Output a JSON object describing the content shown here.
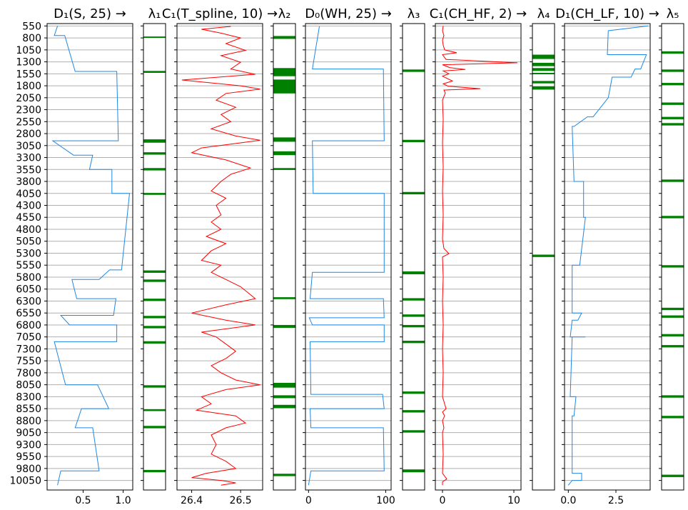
{
  "chart_data": {
    "type": "line",
    "orientation": "vertical-depth-track",
    "shared_y": {
      "ticks": [
        550,
        800,
        1050,
        1300,
        1550,
        1800,
        2050,
        2300,
        2550,
        2800,
        3050,
        3300,
        3550,
        3800,
        4050,
        4300,
        4550,
        4800,
        5050,
        5300,
        5550,
        5800,
        6050,
        6300,
        6550,
        6800,
        7050,
        7300,
        7550,
        7800,
        8050,
        8300,
        8550,
        8800,
        9050,
        9300,
        9550,
        9800,
        10050
      ],
      "range": [
        10250,
        500
      ],
      "grid": true
    },
    "colors": {
      "blue": "#1e88e5",
      "red": "#ff0000",
      "green": "#008000",
      "grid": "#b0b0b0"
    },
    "panels": [
      {
        "title": "D₁(S, 25) →",
        "kind": "line",
        "color": "#1e88e5",
        "xlim": [
          0.05,
          1.12
        ],
        "xticks": [
          0.5,
          1.0
        ],
        "xtick_labels": [
          "0.5",
          "1.0"
        ],
        "points": [
          [
            0.18,
            550
          ],
          [
            0.14,
            750
          ],
          [
            0.27,
            750
          ],
          [
            0.4,
            1500
          ],
          [
            0.92,
            1500
          ],
          [
            0.94,
            2950
          ],
          [
            0.12,
            2950
          ],
          [
            0.38,
            3250
          ],
          [
            0.62,
            3250
          ],
          [
            0.58,
            3550
          ],
          [
            0.86,
            3550
          ],
          [
            0.86,
            4050
          ],
          [
            1.08,
            4050
          ],
          [
            0.98,
            5650
          ],
          [
            0.83,
            5650
          ],
          [
            0.7,
            5850
          ],
          [
            0.36,
            5850
          ],
          [
            0.42,
            6250
          ],
          [
            0.91,
            6250
          ],
          [
            0.88,
            6600
          ],
          [
            0.22,
            6600
          ],
          [
            0.33,
            6800
          ],
          [
            0.92,
            6800
          ],
          [
            0.92,
            7150
          ],
          [
            0.14,
            7150
          ],
          [
            0.28,
            8050
          ],
          [
            0.68,
            8050
          ],
          [
            0.82,
            8550
          ],
          [
            0.48,
            8550
          ],
          [
            0.4,
            8950
          ],
          [
            0.62,
            8950
          ],
          [
            0.7,
            9850
          ],
          [
            0.22,
            9850
          ],
          [
            0.18,
            10150
          ]
        ]
      },
      {
        "title": "λ₁",
        "kind": "bands",
        "color": "#008000",
        "bands": [
          [
            770,
            790
          ],
          [
            1490,
            1530
          ],
          [
            2920,
            2990
          ],
          [
            3190,
            3240
          ],
          [
            3520,
            3570
          ],
          [
            4040,
            4080
          ],
          [
            5660,
            5710
          ],
          [
            5850,
            5900
          ],
          [
            6250,
            6300
          ],
          [
            6610,
            6660
          ],
          [
            6820,
            6870
          ],
          [
            7140,
            7190
          ],
          [
            8060,
            8110
          ],
          [
            8560,
            8600
          ],
          [
            8910,
            8960
          ],
          [
            9830,
            9880
          ]
        ]
      },
      {
        "title": "C₁(T_spline, 10) →",
        "kind": "line",
        "color": "#ff0000",
        "xlim": [
          26.37,
          26.545
        ],
        "xticks": [
          26.4,
          26.5
        ],
        "xtick_labels": [
          "26.4",
          "26.5"
        ],
        "points": [
          [
            26.48,
            560
          ],
          [
            26.42,
            620
          ],
          [
            26.46,
            700
          ],
          [
            26.5,
            800
          ],
          [
            26.47,
            920
          ],
          [
            26.51,
            1060
          ],
          [
            26.46,
            1170
          ],
          [
            26.5,
            1310
          ],
          [
            26.48,
            1450
          ],
          [
            26.53,
            1560
          ],
          [
            26.38,
            1680
          ],
          [
            26.5,
            1800
          ],
          [
            26.54,
            1870
          ],
          [
            26.47,
            1960
          ],
          [
            26.45,
            2100
          ],
          [
            26.49,
            2250
          ],
          [
            26.46,
            2400
          ],
          [
            26.48,
            2550
          ],
          [
            26.44,
            2700
          ],
          [
            26.49,
            2850
          ],
          [
            26.54,
            2940
          ],
          [
            26.42,
            3100
          ],
          [
            26.4,
            3200
          ],
          [
            26.47,
            3350
          ],
          [
            26.52,
            3520
          ],
          [
            26.48,
            3650
          ],
          [
            26.46,
            3800
          ],
          [
            26.44,
            4000
          ],
          [
            26.47,
            4150
          ],
          [
            26.45,
            4300
          ],
          [
            26.46,
            4500
          ],
          [
            26.44,
            4650
          ],
          [
            26.46,
            4800
          ],
          [
            26.43,
            4950
          ],
          [
            26.47,
            5100
          ],
          [
            26.44,
            5250
          ],
          [
            26.42,
            5450
          ],
          [
            26.46,
            5550
          ],
          [
            26.44,
            5700
          ],
          [
            26.47,
            5850
          ],
          [
            26.5,
            6000
          ],
          [
            26.53,
            6250
          ],
          [
            26.47,
            6380
          ],
          [
            26.4,
            6550
          ],
          [
            26.47,
            6700
          ],
          [
            26.53,
            6800
          ],
          [
            26.42,
            6950
          ],
          [
            26.45,
            7050
          ],
          [
            26.47,
            7200
          ],
          [
            26.49,
            7350
          ],
          [
            26.47,
            7500
          ],
          [
            26.44,
            7650
          ],
          [
            26.46,
            7800
          ],
          [
            26.49,
            7950
          ],
          [
            26.54,
            8050
          ],
          [
            26.47,
            8150
          ],
          [
            26.42,
            8300
          ],
          [
            26.44,
            8450
          ],
          [
            26.41,
            8580
          ],
          [
            26.49,
            8700
          ],
          [
            26.51,
            8850
          ],
          [
            26.47,
            8950
          ],
          [
            26.44,
            9100
          ],
          [
            26.45,
            9300
          ],
          [
            26.44,
            9500
          ],
          [
            26.47,
            9650
          ],
          [
            26.49,
            9800
          ],
          [
            26.43,
            9900
          ],
          [
            26.4,
            9990
          ],
          [
            26.46,
            10050
          ],
          [
            26.49,
            10100
          ],
          [
            26.46,
            10150
          ]
        ]
      },
      {
        "title": "λ₂",
        "kind": "bands",
        "color": "#008000",
        "bands": [
          [
            760,
            820
          ],
          [
            1430,
            1600
          ],
          [
            1670,
            1960
          ],
          [
            2880,
            2970
          ],
          [
            3170,
            3250
          ],
          [
            3520,
            3560
          ],
          [
            6220,
            6260
          ],
          [
            6800,
            6860
          ],
          [
            8010,
            8110
          ],
          [
            8270,
            8330
          ],
          [
            8470,
            8540
          ],
          [
            9910,
            9960
          ]
        ]
      },
      {
        "title": "D₀(WH, 25) →",
        "kind": "line",
        "color": "#1e88e5",
        "xlim": [
          -4,
          107
        ],
        "xticks": [
          0,
          100
        ],
        "xtick_labels": [
          "0",
          "100"
        ],
        "points": [
          [
            14,
            560
          ],
          [
            5,
            1450
          ],
          [
            97,
            1450
          ],
          [
            98,
            2950
          ],
          [
            5,
            2950
          ],
          [
            6,
            4050
          ],
          [
            98,
            4050
          ],
          [
            98,
            5700
          ],
          [
            5,
            5700
          ],
          [
            2,
            6250
          ],
          [
            97,
            6250
          ],
          [
            98,
            6650
          ],
          [
            1,
            6650
          ],
          [
            5,
            6800
          ],
          [
            98,
            6800
          ],
          [
            98,
            7150
          ],
          [
            2,
            7150
          ],
          [
            3,
            8250
          ],
          [
            96,
            8250
          ],
          [
            98,
            8550
          ],
          [
            2,
            8550
          ],
          [
            3,
            8950
          ],
          [
            97,
            8950
          ],
          [
            98,
            9850
          ],
          [
            3,
            9850
          ],
          [
            0,
            10150
          ]
        ]
      },
      {
        "title": "λ₃",
        "kind": "bands",
        "color": "#008000",
        "bands": [
          [
            1460,
            1510
          ],
          [
            2930,
            2980
          ],
          [
            4020,
            4070
          ],
          [
            5680,
            5740
          ],
          [
            6240,
            6290
          ],
          [
            6580,
            6630
          ],
          [
            6800,
            6850
          ],
          [
            7130,
            7180
          ],
          [
            8190,
            8240
          ],
          [
            8580,
            8630
          ],
          [
            9000,
            9050
          ],
          [
            9820,
            9880
          ]
        ]
      },
      {
        "title": "C₁(CH_HF, 2) →",
        "kind": "line",
        "color": "#ff0000",
        "xlim": [
          -1,
          11
        ],
        "xticks": [
          0,
          10
        ],
        "xtick_labels": [
          "0",
          "10"
        ],
        "points": [
          [
            0.1,
            550
          ],
          [
            0.0,
            650
          ],
          [
            0.2,
            750
          ],
          [
            0.0,
            850
          ],
          [
            0.1,
            950
          ],
          [
            0.3,
            1050
          ],
          [
            2.0,
            1110
          ],
          [
            0.0,
            1150
          ],
          [
            0.5,
            1250
          ],
          [
            10.5,
            1320
          ],
          [
            0.0,
            1360
          ],
          [
            1.0,
            1420
          ],
          [
            3.2,
            1460
          ],
          [
            0.1,
            1490
          ],
          [
            0.9,
            1550
          ],
          [
            0.0,
            1600
          ],
          [
            1.4,
            1700
          ],
          [
            0.1,
            1760
          ],
          [
            0.8,
            1810
          ],
          [
            5.3,
            1860
          ],
          [
            0.2,
            1890
          ],
          [
            0.4,
            1950
          ],
          [
            0.0,
            2100
          ],
          [
            0.1,
            2500
          ],
          [
            0.0,
            3000
          ],
          [
            0.1,
            3500
          ],
          [
            0.0,
            4000
          ],
          [
            0.1,
            4500
          ],
          [
            0.0,
            5000
          ],
          [
            0.2,
            5200
          ],
          [
            0.9,
            5310
          ],
          [
            0.0,
            5380
          ],
          [
            0.1,
            5800
          ],
          [
            0.0,
            6300
          ],
          [
            0.1,
            6800
          ],
          [
            0.0,
            7300
          ],
          [
            0.1,
            7800
          ],
          [
            0.0,
            8300
          ],
          [
            0.5,
            8550
          ],
          [
            0.0,
            8620
          ],
          [
            0.3,
            8700
          ],
          [
            0.0,
            8800
          ],
          [
            0.2,
            8950
          ],
          [
            0.0,
            9050
          ],
          [
            0.1,
            9500
          ],
          [
            0.0,
            9900
          ],
          [
            0.6,
            10020
          ],
          [
            0.0,
            10080
          ],
          [
            0.0,
            10150
          ]
        ]
      },
      {
        "title": "λ₄",
        "kind": "bands",
        "color": "#008000",
        "bands": [
          [
            1150,
            1240
          ],
          [
            1320,
            1390
          ],
          [
            1430,
            1490
          ],
          [
            1530,
            1560
          ],
          [
            1700,
            1750
          ],
          [
            1810,
            1880
          ],
          [
            5330,
            5380
          ]
        ]
      },
      {
        "title": "D₁(CH_LF, 10) →",
        "kind": "line",
        "color": "#1e88e5",
        "xlim": [
          -0.2,
          4.3
        ],
        "xticks": [
          0.0,
          2.5
        ],
        "xtick_labels": [
          "0.0",
          "2.5"
        ],
        "points": [
          [
            4.2,
            550
          ],
          [
            2.1,
            650
          ],
          [
            2.05,
            1150
          ],
          [
            4.1,
            1150
          ],
          [
            3.8,
            1450
          ],
          [
            3.5,
            1450
          ],
          [
            3.3,
            1620
          ],
          [
            2.3,
            1620
          ],
          [
            2.1,
            2050
          ],
          [
            1.7,
            2250
          ],
          [
            1.3,
            2450
          ],
          [
            1.0,
            2450
          ],
          [
            0.3,
            2650
          ],
          [
            0.2,
            2650
          ],
          [
            0.3,
            3800
          ],
          [
            0.8,
            3800
          ],
          [
            0.8,
            4550
          ],
          [
            0.9,
            4550
          ],
          [
            0.6,
            5550
          ],
          [
            0.2,
            5550
          ],
          [
            0.2,
            6550
          ],
          [
            0.7,
            6550
          ],
          [
            0.5,
            6700
          ],
          [
            0.2,
            6700
          ],
          [
            0.1,
            7050
          ],
          [
            0.9,
            7050
          ],
          [
            0.2,
            7050
          ],
          [
            0.1,
            8300
          ],
          [
            0.4,
            8300
          ],
          [
            0.3,
            8700
          ],
          [
            0.2,
            8700
          ],
          [
            0.2,
            9900
          ],
          [
            0.7,
            9900
          ],
          [
            0.7,
            10050
          ],
          [
            0.2,
            10050
          ],
          [
            0.0,
            10150
          ]
        ]
      },
      {
        "title": "λ₅",
        "kind": "bands",
        "color": "#008000",
        "bands": [
          [
            1080,
            1130
          ],
          [
            1460,
            1510
          ],
          [
            1740,
            1790
          ],
          [
            2150,
            2200
          ],
          [
            2450,
            2500
          ],
          [
            2580,
            2630
          ],
          [
            3760,
            3810
          ],
          [
            4520,
            4570
          ],
          [
            5550,
            5600
          ],
          [
            6440,
            6490
          ],
          [
            6600,
            6650
          ],
          [
            6990,
            7040
          ],
          [
            7220,
            7270
          ],
          [
            8270,
            8320
          ],
          [
            8700,
            8750
          ],
          [
            9930,
            9980
          ]
        ]
      }
    ]
  }
}
